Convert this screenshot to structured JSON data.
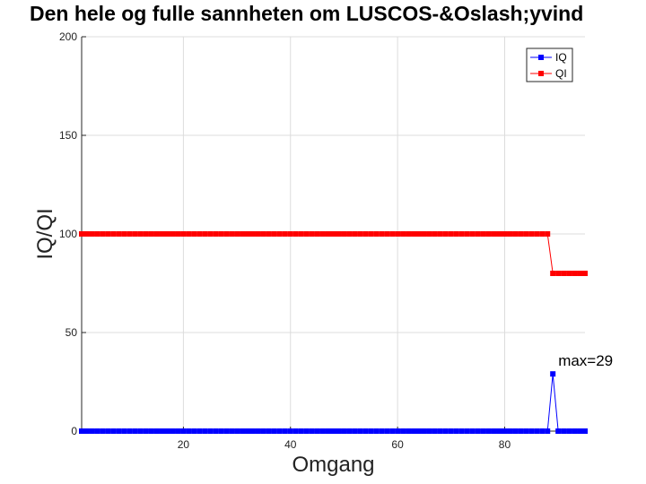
{
  "chart_data": {
    "type": "line",
    "title": "Den hele og fulle sannheten om LUSCOS-&Oslash;yvind",
    "xlabel": "Omgang",
    "ylabel": "IQ/QI",
    "xlim": [
      1,
      95
    ],
    "ylim": [
      0,
      200
    ],
    "x_ticks": [
      20,
      40,
      60,
      80
    ],
    "y_ticks": [
      0,
      50,
      100,
      150,
      200
    ],
    "grid": true,
    "legend_position": "top-right",
    "series": [
      {
        "name": "IQ",
        "color": "#0000ff",
        "marker": "square",
        "segments": [
          {
            "from": 1,
            "to": 88,
            "value": 0
          },
          {
            "from": 89,
            "to": 89,
            "value": 29
          },
          {
            "from": 90,
            "to": 95,
            "value": 0
          }
        ]
      },
      {
        "name": "QI",
        "color": "#ff0000",
        "marker": "square",
        "segments": [
          {
            "from": 1,
            "to": 88,
            "value": 100
          },
          {
            "from": 89,
            "to": 95,
            "value": 80
          }
        ]
      }
    ],
    "annotations": [
      {
        "text": "max=29",
        "x": 89,
        "y": 29
      }
    ]
  }
}
